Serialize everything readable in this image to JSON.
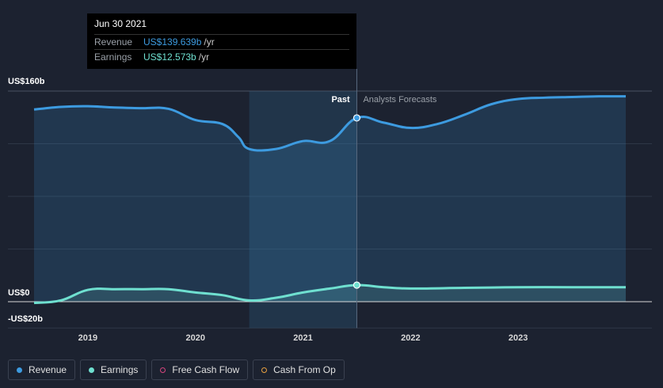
{
  "tooltip": {
    "date": "Jun 30 2021",
    "revenue_label": "Revenue",
    "revenue_value": "US$139.639b",
    "earnings_label": "Earnings",
    "earnings_value": "US$12.573b",
    "unit": "/yr"
  },
  "regions": {
    "past_label": "Past",
    "forecast_label": "Analysts Forecasts"
  },
  "legend": [
    {
      "label": "Revenue",
      "color": "#3d9be0",
      "filled": true
    },
    {
      "label": "Earnings",
      "color": "#6fe0d0",
      "filled": true
    },
    {
      "label": "Free Cash Flow",
      "color": "#d6457e",
      "filled": false
    },
    {
      "label": "Cash From Op",
      "color": "#e8a040",
      "filled": false
    }
  ],
  "colors": {
    "revenue": "#3d9be0",
    "earnings": "#6fe0d0",
    "background": "#1c2230"
  },
  "chart_data": {
    "type": "area",
    "title": "",
    "xlabel": "",
    "ylabel": "",
    "y_tick_labels": [
      "US$160b",
      "US$0",
      "-US$20b"
    ],
    "ylim": [
      -20,
      160
    ],
    "xlim": [
      2018.5,
      2024.0
    ],
    "x_ticks": [
      2019,
      2020,
      2021,
      2022,
      2023
    ],
    "x_tick_labels": [
      "2019",
      "2020",
      "2021",
      "2022",
      "2023"
    ],
    "highlight_range": [
      2020.5,
      2021.5
    ],
    "past_end": 2021.5,
    "series": [
      {
        "name": "Revenue",
        "x": [
          2018.5,
          2018.75,
          2019.0,
          2019.25,
          2019.5,
          2019.75,
          2020.0,
          2020.25,
          2020.4,
          2020.5,
          2020.75,
          2021.0,
          2021.25,
          2021.5,
          2021.75,
          2022.0,
          2022.25,
          2022.5,
          2022.75,
          2023.0,
          2023.25,
          2023.5,
          2023.75,
          2024.0
        ],
        "values": [
          146,
          148,
          148.5,
          147.5,
          147,
          146.5,
          138,
          135,
          125,
          116,
          116,
          122,
          122,
          139.6,
          136,
          132,
          135,
          142,
          150,
          154,
          155,
          155.5,
          156,
          156
        ]
      },
      {
        "name": "Earnings",
        "x": [
          2018.5,
          2018.75,
          2019.0,
          2019.25,
          2019.5,
          2019.75,
          2020.0,
          2020.25,
          2020.5,
          2020.75,
          2021.0,
          2021.25,
          2021.5,
          2021.75,
          2022.0,
          2022.5,
          2023.0,
          2023.5,
          2024.0
        ],
        "values": [
          -1,
          1,
          9,
          9.5,
          9.5,
          9.5,
          7,
          5,
          1,
          3,
          7,
          10,
          12.6,
          11,
          10,
          10.5,
          11,
          11,
          11
        ]
      }
    ]
  }
}
